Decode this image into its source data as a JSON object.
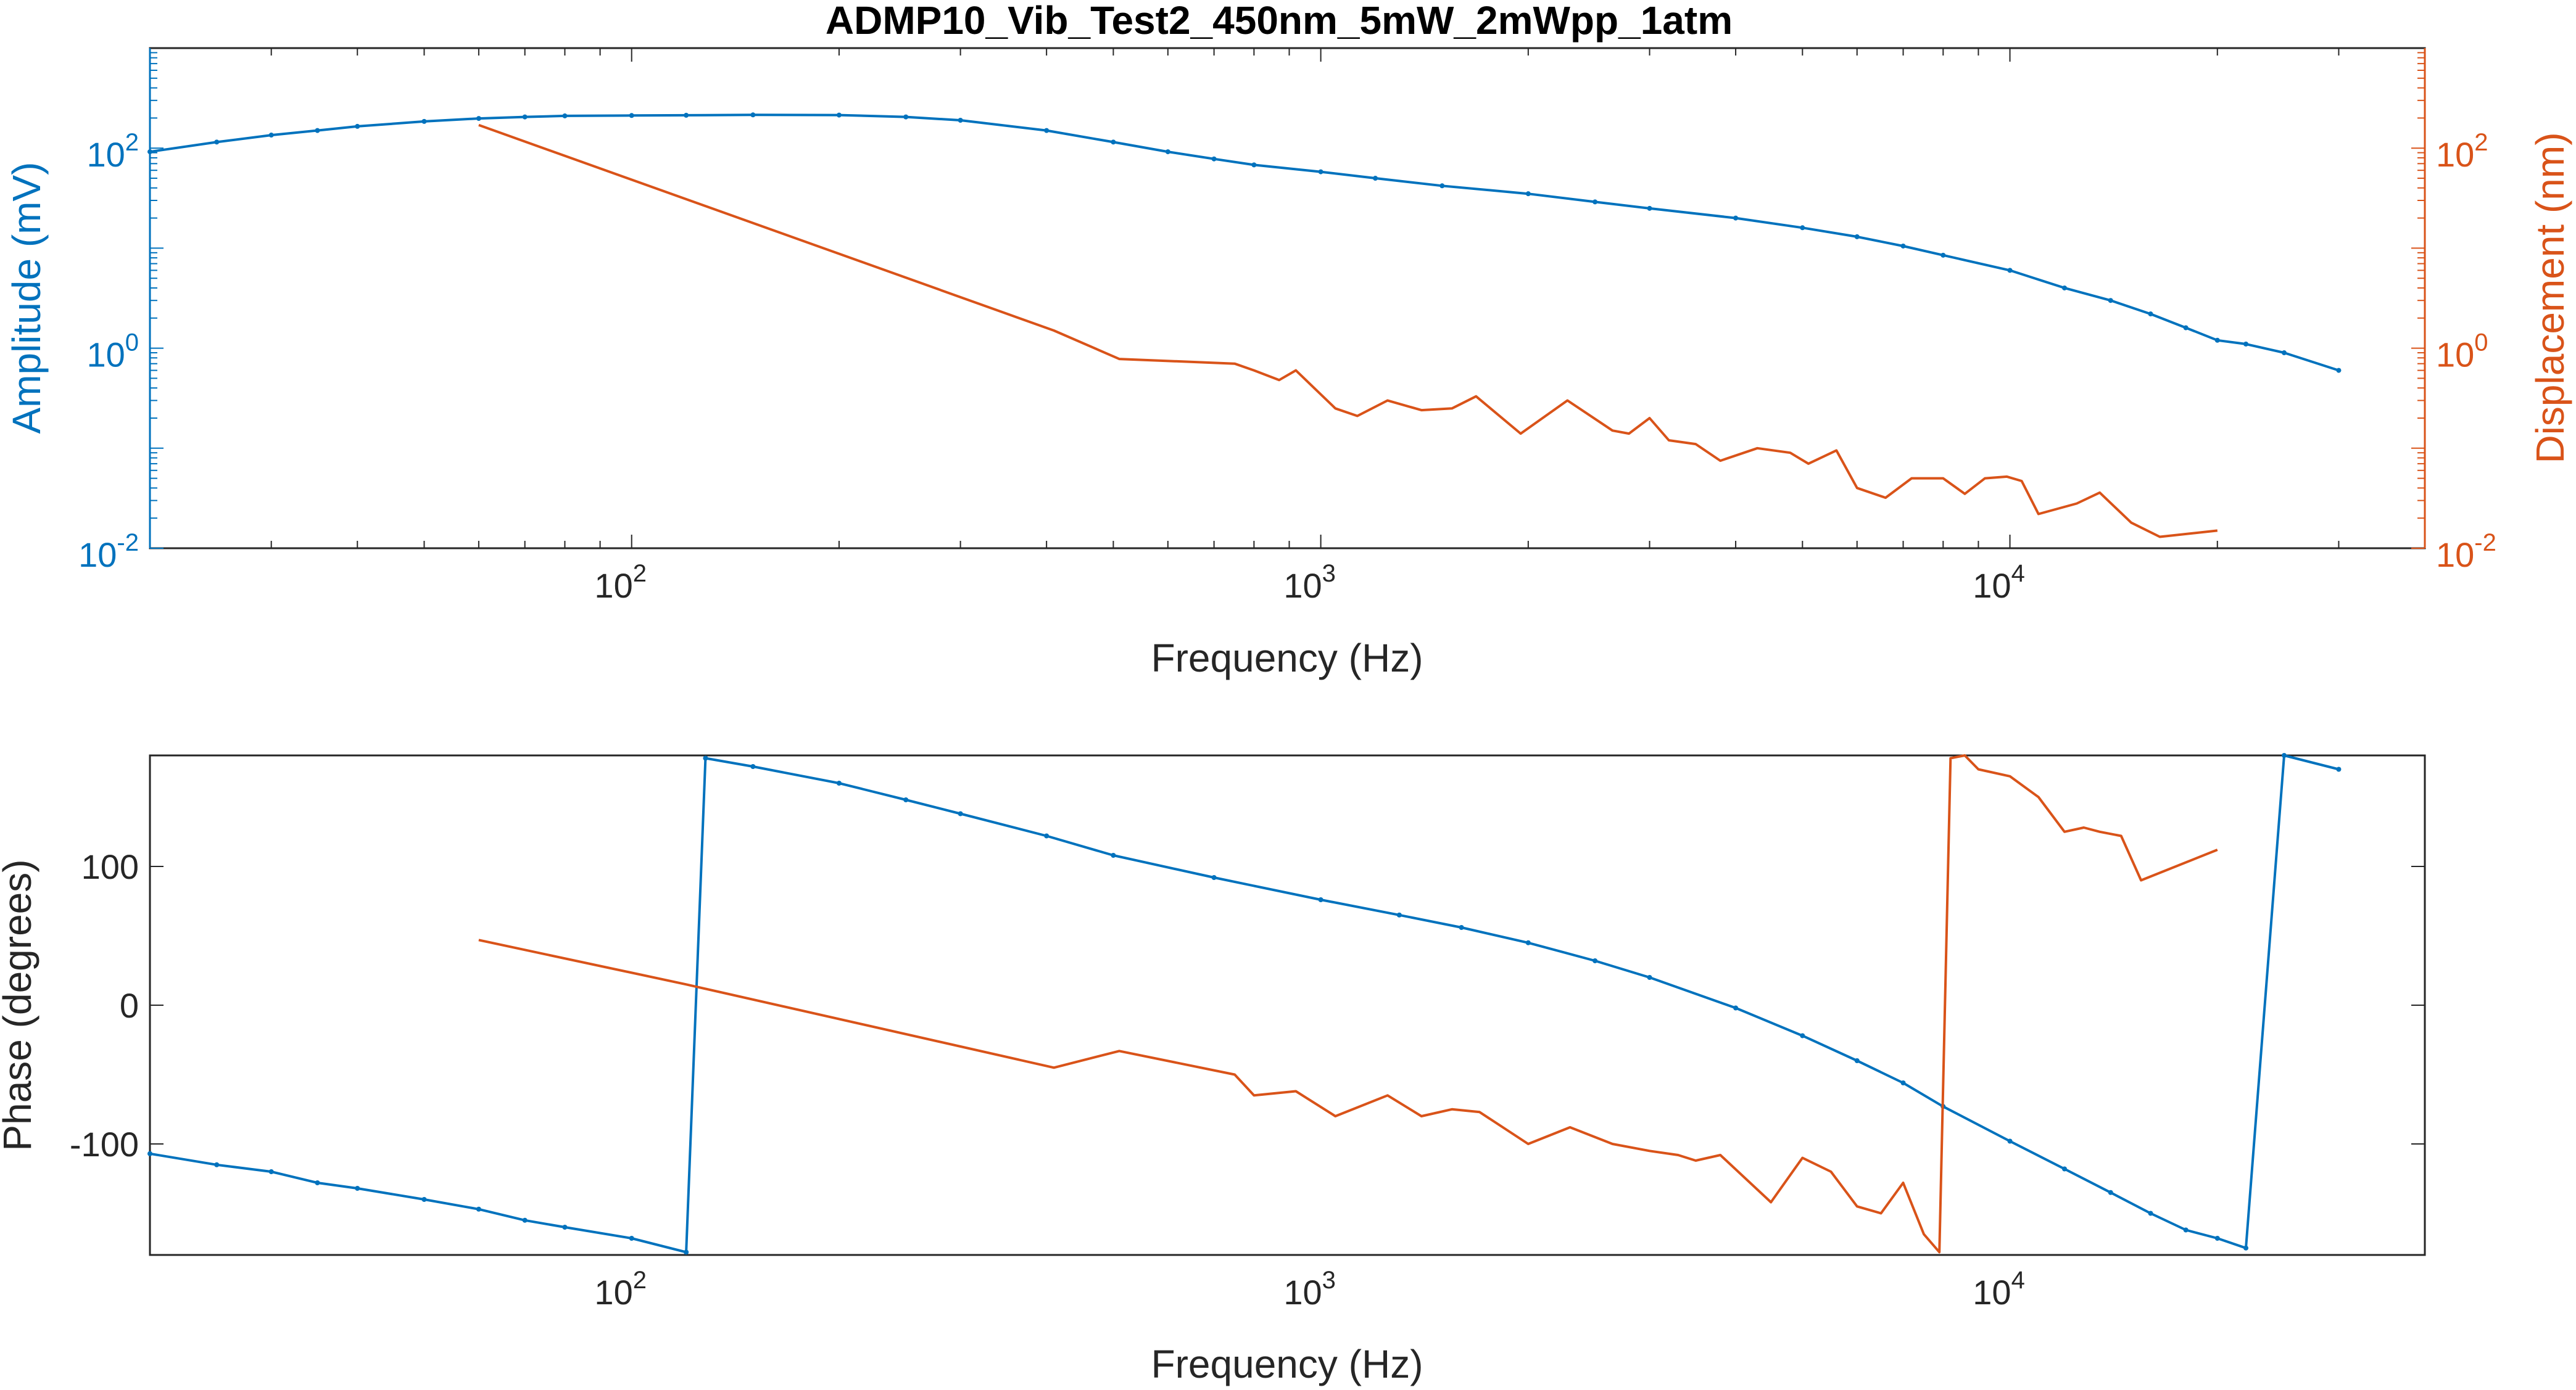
{
  "chart_data": [
    {
      "type": "line",
      "title": "ADMP10_Vib_Test2_450nm_5mW_2mWpp_1atm",
      "xlabel": "Frequency (Hz)",
      "ylabel": "Amplitude (mV)",
      "y2label": "Displacement (nm)",
      "xscale": "log",
      "yscale": "log",
      "xlim": [
        20,
        40000
      ],
      "ylim": [
        0.01,
        1000
      ],
      "y2lim": [
        0.01,
        1000
      ],
      "xticks": [
        {
          "value": 100,
          "base": "10",
          "exp": "2"
        },
        {
          "value": 1000,
          "base": "10",
          "exp": "3"
        },
        {
          "value": 10000,
          "base": "10",
          "exp": "4"
        }
      ],
      "yticks": [
        {
          "value": 0.01,
          "base": "10",
          "exp": "-2"
        },
        {
          "value": 1,
          "base": "10",
          "exp": "0"
        },
        {
          "value": 100,
          "base": "10",
          "exp": "2"
        }
      ],
      "colors": {
        "blue": "#0072bd",
        "orange": "#d95319"
      },
      "series": [
        {
          "axis": "left",
          "color": "#0072bd",
          "x": [
            20,
            25,
            30,
            35,
            40,
            50,
            60,
            70,
            80,
            100,
            120,
            150,
            200,
            250,
            300,
            400,
            500,
            600,
            700,
            800,
            1000,
            1200,
            1500,
            2000,
            2500,
            3000,
            4000,
            5000,
            6000,
            7000,
            8000,
            10000,
            12000,
            14000,
            16000,
            18000,
            20000,
            22000,
            25000,
            30000
          ],
          "y": [
            92,
            115,
            135,
            150,
            165,
            185,
            198,
            205,
            210,
            212,
            213,
            215,
            214,
            205,
            190,
            150,
            115,
            92,
            78,
            68,
            58,
            50,
            42,
            35,
            29,
            25,
            20,
            16,
            13,
            10.5,
            8.5,
            6,
            4,
            3,
            2.2,
            1.6,
            1.2,
            1.1,
            0.9,
            0.6
          ]
        },
        {
          "axis": "right",
          "color": "#d95319",
          "x": [
            60,
            410,
            510,
            750,
            800,
            870,
            920,
            1050,
            1130,
            1250,
            1400,
            1550,
            1680,
            1950,
            2280,
            2650,
            2800,
            3000,
            3200,
            3500,
            3800,
            4300,
            4800,
            5100,
            5600,
            6000,
            6600,
            7200,
            8000,
            8600,
            9200,
            9900,
            10400,
            11000,
            12500,
            13500,
            15000,
            16500,
            20000
          ],
          "y": [
            170,
            1.5,
            0.78,
            0.7,
            0.6,
            0.48,
            0.6,
            0.25,
            0.21,
            0.3,
            0.24,
            0.25,
            0.33,
            0.14,
            0.3,
            0.15,
            0.14,
            0.2,
            0.12,
            0.11,
            0.075,
            0.1,
            0.09,
            0.07,
            0.095,
            0.04,
            0.032,
            0.05,
            0.05,
            0.035,
            0.05,
            0.052,
            0.047,
            0.022,
            0.028,
            0.036,
            0.018,
            0.013,
            0.015
          ]
        }
      ]
    },
    {
      "type": "line",
      "xlabel": "Frequency (Hz)",
      "ylabel": "Phase (degrees)",
      "xscale": "log",
      "xlim": [
        20,
        40000
      ],
      "ylim": [
        -180,
        180
      ],
      "xticks": [
        {
          "value": 100,
          "base": "10",
          "exp": "2"
        },
        {
          "value": 1000,
          "base": "10",
          "exp": "3"
        },
        {
          "value": 10000,
          "base": "10",
          "exp": "4"
        }
      ],
      "yticks": [
        {
          "value": -100,
          "label": "-100"
        },
        {
          "value": 0,
          "label": "0"
        },
        {
          "value": 100,
          "label": "100"
        }
      ],
      "series": [
        {
          "color": "#0072bd",
          "x": [
            20,
            25,
            30,
            35,
            40,
            50,
            60,
            70,
            80,
            100,
            120,
            128,
            150,
            200,
            250,
            300,
            400,
            500,
            700,
            1000,
            1300,
            1600,
            2000,
            2500,
            3000,
            4000,
            5000,
            6000,
            7000,
            8000,
            10000,
            12000,
            14000,
            16000,
            18000,
            20000,
            22000,
            25000,
            30000
          ],
          "y": [
            -107,
            -115,
            -120,
            -128,
            -132,
            -140,
            -147,
            -155,
            -160,
            -168,
            -178,
            178,
            172,
            160,
            148,
            138,
            122,
            108,
            92,
            76,
            65,
            56,
            45,
            32,
            20,
            -2,
            -22,
            -40,
            -56,
            -73,
            -98,
            -118,
            -135,
            -150,
            -162,
            -168,
            -175,
            180,
            170
          ]
        },
        {
          "color": "#d95319",
          "x": [
            60,
            120,
            410,
            510,
            750,
            800,
            920,
            1050,
            1250,
            1400,
            1550,
            1700,
            2000,
            2300,
            2650,
            3000,
            3300,
            3500,
            3800,
            4500,
            5000,
            5500,
            6000,
            6500,
            7000,
            7500,
            7900,
            8200,
            8600,
            9000,
            10000,
            11000,
            12000,
            12800,
            13500,
            14500,
            15500,
            20000
          ],
          "y": [
            47,
            15,
            -45,
            -33,
            -50,
            -65,
            -62,
            -80,
            -65,
            -80,
            -75,
            -77,
            -100,
            -88,
            -100,
            -105,
            -108,
            -112,
            -108,
            -142,
            -110,
            -120,
            -145,
            -150,
            -128,
            -165,
            -178,
            178,
            180,
            170,
            165,
            150,
            125,
            128,
            125,
            122,
            90,
            112
          ]
        }
      ]
    }
  ]
}
